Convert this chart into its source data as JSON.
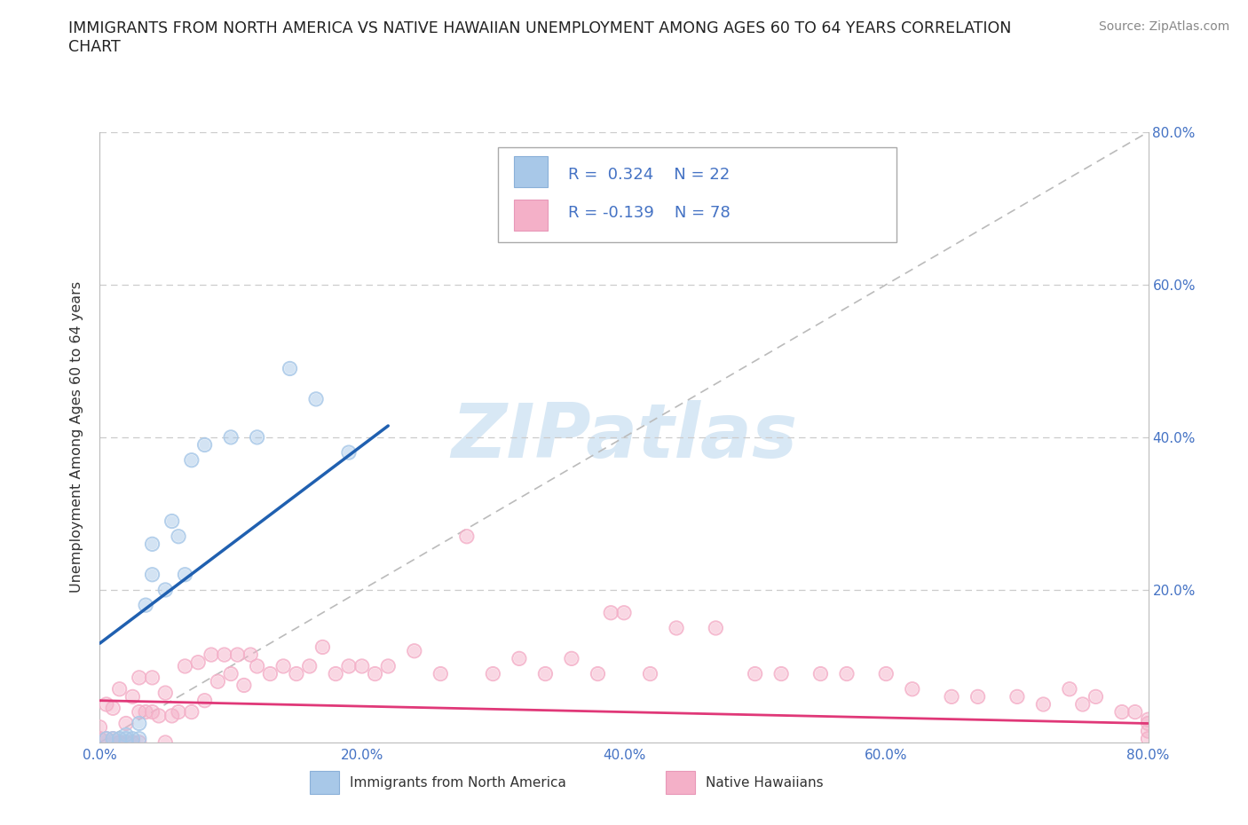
{
  "title_line1": "IMMIGRANTS FROM NORTH AMERICA VS NATIVE HAWAIIAN UNEMPLOYMENT AMONG AGES 60 TO 64 YEARS CORRELATION",
  "title_line2": "CHART",
  "source": "Source: ZipAtlas.com",
  "ylabel": "Unemployment Among Ages 60 to 64 years",
  "xlim": [
    0.0,
    0.8
  ],
  "ylim": [
    0.0,
    0.8
  ],
  "xticks": [
    0.0,
    0.2,
    0.4,
    0.6,
    0.8
  ],
  "right_yticks": [
    0.2,
    0.4,
    0.6,
    0.8
  ],
  "blue_R": 0.324,
  "blue_N": 22,
  "pink_R": -0.139,
  "pink_N": 78,
  "blue_fill": "#a8c8e8",
  "pink_fill": "#f4b0c8",
  "blue_line": "#2060b0",
  "pink_line": "#e03878",
  "diagonal_color": "#bbbbbb",
  "watermark_color": "#d8e8f5",
  "tick_color": "#4472c4",
  "grid_color": "#cccccc",
  "blue_x": [
    0.005,
    0.01,
    0.015,
    0.02,
    0.02,
    0.025,
    0.03,
    0.03,
    0.035,
    0.04,
    0.04,
    0.05,
    0.055,
    0.06,
    0.065,
    0.07,
    0.08,
    0.1,
    0.12,
    0.145,
    0.165,
    0.19
  ],
  "blue_y": [
    0.005,
    0.005,
    0.005,
    0.01,
    0.005,
    0.005,
    0.005,
    0.025,
    0.18,
    0.22,
    0.26,
    0.2,
    0.29,
    0.27,
    0.22,
    0.37,
    0.39,
    0.4,
    0.4,
    0.49,
    0.45,
    0.38
  ],
  "pink_x": [
    0.0,
    0.0,
    0.005,
    0.005,
    0.01,
    0.01,
    0.015,
    0.015,
    0.015,
    0.02,
    0.02,
    0.025,
    0.025,
    0.03,
    0.03,
    0.03,
    0.035,
    0.04,
    0.04,
    0.045,
    0.05,
    0.05,
    0.055,
    0.06,
    0.065,
    0.07,
    0.075,
    0.08,
    0.085,
    0.09,
    0.095,
    0.1,
    0.105,
    0.11,
    0.115,
    0.12,
    0.13,
    0.14,
    0.15,
    0.16,
    0.17,
    0.18,
    0.19,
    0.2,
    0.21,
    0.22,
    0.24,
    0.26,
    0.28,
    0.3,
    0.32,
    0.34,
    0.36,
    0.38,
    0.39,
    0.4,
    0.42,
    0.44,
    0.47,
    0.5,
    0.52,
    0.55,
    0.57,
    0.6,
    0.62,
    0.65,
    0.67,
    0.7,
    0.72,
    0.74,
    0.75,
    0.76,
    0.78,
    0.79,
    0.8,
    0.8,
    0.8,
    0.8
  ],
  "pink_y": [
    0.005,
    0.02,
    0.005,
    0.05,
    0.005,
    0.045,
    0.0,
    0.0,
    0.07,
    0.0,
    0.025,
    0.0,
    0.06,
    0.0,
    0.04,
    0.085,
    0.04,
    0.04,
    0.085,
    0.035,
    0.0,
    0.065,
    0.035,
    0.04,
    0.1,
    0.04,
    0.105,
    0.055,
    0.115,
    0.08,
    0.115,
    0.09,
    0.115,
    0.075,
    0.115,
    0.1,
    0.09,
    0.1,
    0.09,
    0.1,
    0.125,
    0.09,
    0.1,
    0.1,
    0.09,
    0.1,
    0.12,
    0.09,
    0.27,
    0.09,
    0.11,
    0.09,
    0.11,
    0.09,
    0.17,
    0.17,
    0.09,
    0.15,
    0.15,
    0.09,
    0.09,
    0.09,
    0.09,
    0.09,
    0.07,
    0.06,
    0.06,
    0.06,
    0.05,
    0.07,
    0.05,
    0.06,
    0.04,
    0.04,
    0.03,
    0.025,
    0.015,
    0.005
  ],
  "blue_line_x0": 0.0,
  "blue_line_y0": 0.13,
  "blue_line_x1": 0.22,
  "blue_line_y1": 0.415,
  "pink_line_x0": 0.0,
  "pink_line_y0": 0.055,
  "pink_line_x1": 0.8,
  "pink_line_y1": 0.025
}
